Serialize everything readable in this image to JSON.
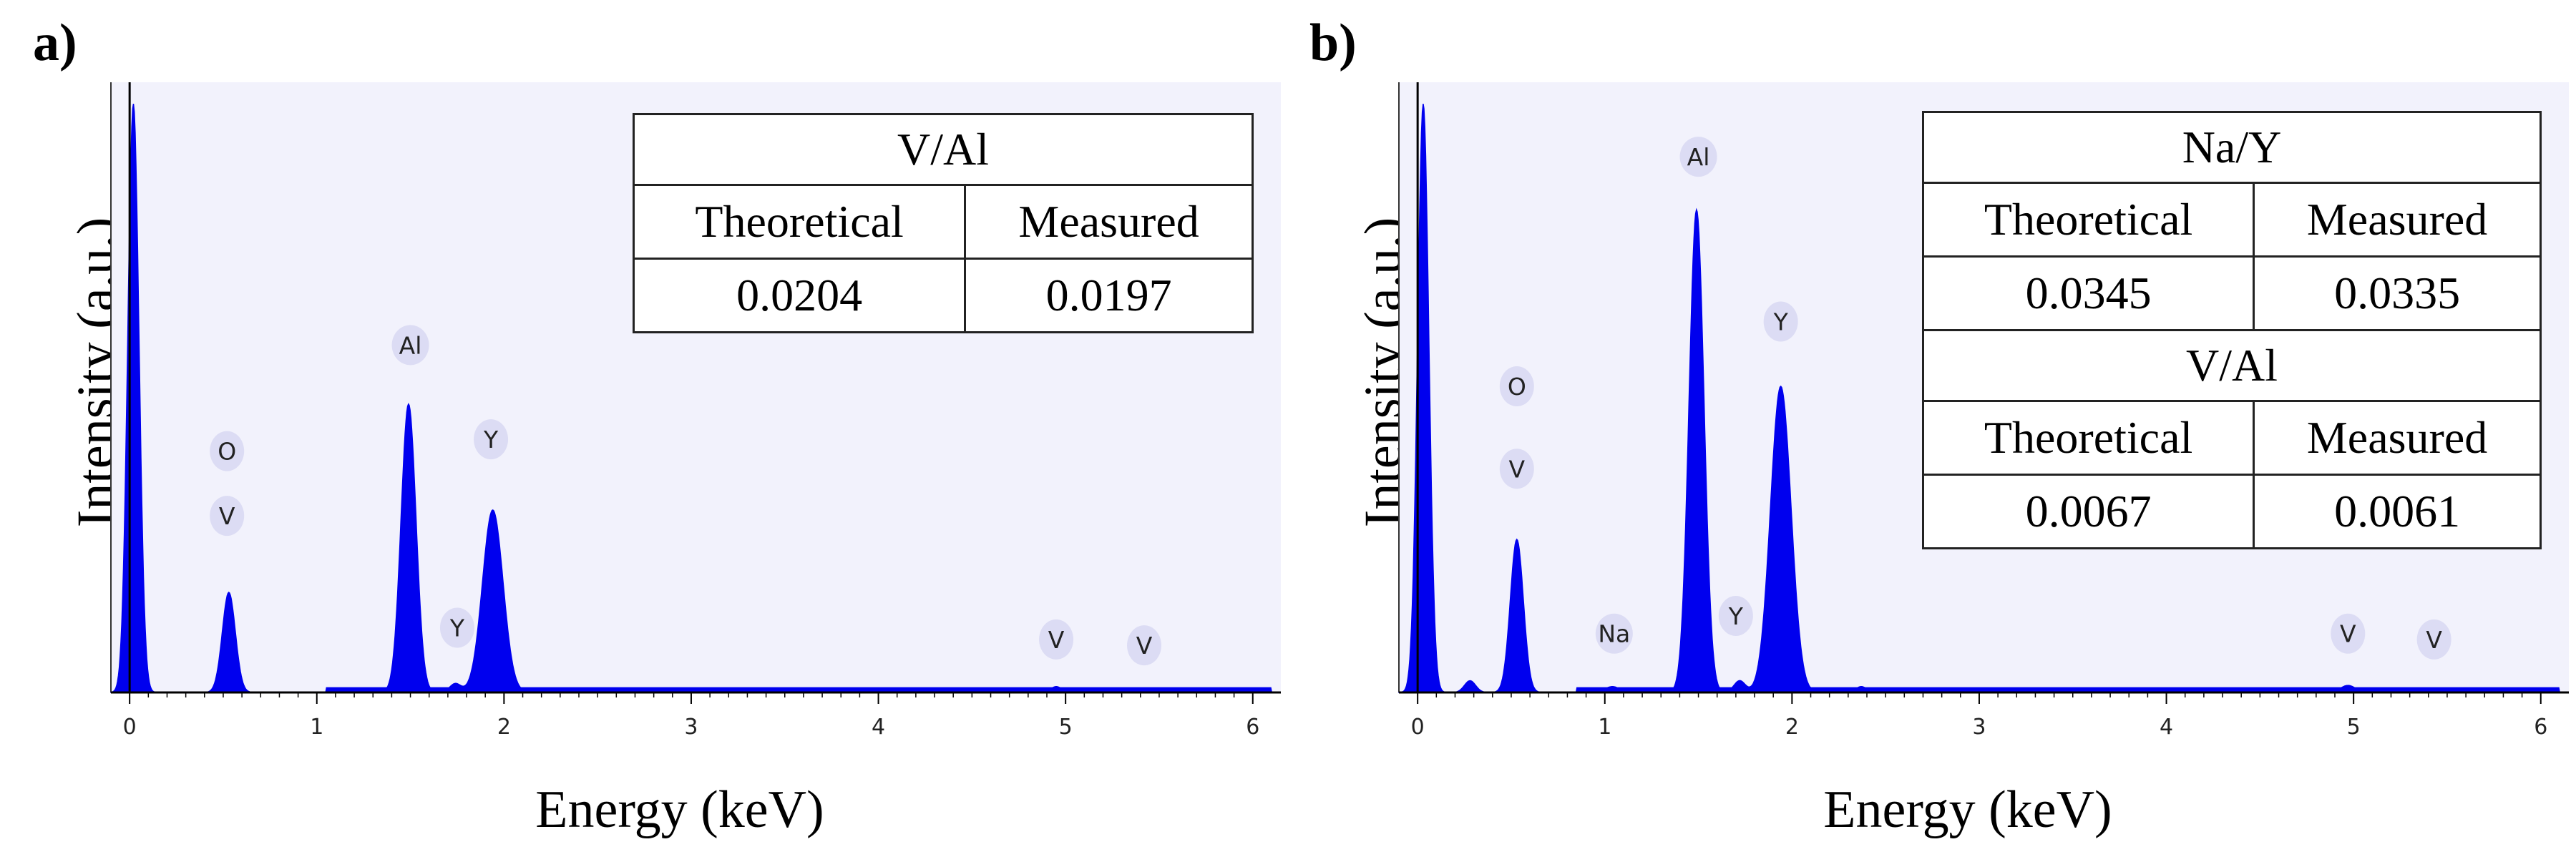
{
  "chart_data": [
    {
      "panel": "a)",
      "type": "area",
      "title": "",
      "xlabel": "Energy (keV)",
      "ylabel": "Intensity (a.u.)",
      "xlim": [
        -0.1,
        6.15
      ],
      "xticks": [
        "0",
        "1",
        "2",
        "3",
        "4",
        "5",
        "6"
      ],
      "grid": false,
      "peaks": [
        {
          "x": 0.02,
          "height": 100,
          "width": 0.03
        },
        {
          "x": 0.53,
          "height": 17,
          "width": 0.035
        },
        {
          "x": 1.49,
          "height": 49,
          "width": 0.04
        },
        {
          "x": 1.74,
          "height": 1.5,
          "width": 0.03
        },
        {
          "x": 1.94,
          "height": 31,
          "width": 0.055
        },
        {
          "x": 4.95,
          "height": 1,
          "width": 0.03
        }
      ],
      "baseline": {
        "from": 1.05,
        "to": 6.1,
        "value": 0.8
      },
      "peak_labels": [
        {
          "text": "O",
          "x": 0.52,
          "y": 41
        },
        {
          "text": "V",
          "x": 0.52,
          "y": 30
        },
        {
          "text": "Al",
          "x": 1.5,
          "y": 59
        },
        {
          "text": "Y",
          "x": 1.75,
          "y": 11
        },
        {
          "text": "Y",
          "x": 1.93,
          "y": 43
        },
        {
          "text": "V",
          "x": 4.95,
          "y": 9
        },
        {
          "text": "V",
          "x": 5.42,
          "y": 8
        }
      ],
      "tables": [
        {
          "title": "V/Al",
          "headers": [
            "Theoretical",
            "Measured"
          ],
          "values": [
            "0.0204",
            "0.0197"
          ]
        }
      ]
    },
    {
      "panel": "b)",
      "type": "area",
      "title": "",
      "xlabel": "Energy (keV)",
      "ylabel": "Intensity (a.u.)",
      "xlim": [
        -0.1,
        6.15
      ],
      "xticks": [
        "0",
        "1",
        "2",
        "3",
        "4",
        "5",
        "6"
      ],
      "grid": false,
      "peaks": [
        {
          "x": 0.03,
          "height": 100,
          "width": 0.03
        },
        {
          "x": 0.28,
          "height": 2,
          "width": 0.03
        },
        {
          "x": 0.53,
          "height": 26,
          "width": 0.035
        },
        {
          "x": 1.04,
          "height": 1,
          "width": 0.04
        },
        {
          "x": 1.49,
          "height": 82,
          "width": 0.04
        },
        {
          "x": 1.72,
          "height": 2,
          "width": 0.03
        },
        {
          "x": 1.94,
          "height": 52,
          "width": 0.055
        },
        {
          "x": 2.37,
          "height": 1,
          "width": 0.03
        },
        {
          "x": 4.97,
          "height": 1.2,
          "width": 0.04
        }
      ],
      "baseline": {
        "from": 0.85,
        "to": 6.1,
        "value": 0.8
      },
      "peak_labels": [
        {
          "text": "O",
          "x": 0.53,
          "y": 52
        },
        {
          "text": "V",
          "x": 0.53,
          "y": 38
        },
        {
          "text": "Na",
          "x": 1.05,
          "y": 10
        },
        {
          "text": "Al",
          "x": 1.5,
          "y": 91
        },
        {
          "text": "Y",
          "x": 1.7,
          "y": 13
        },
        {
          "text": "Y",
          "x": 1.94,
          "y": 63
        },
        {
          "text": "V",
          "x": 4.97,
          "y": 10
        },
        {
          "text": "V",
          "x": 5.43,
          "y": 9
        }
      ],
      "tables": [
        {
          "title": "Na/Y",
          "headers": [
            "Theoretical",
            "Measured"
          ],
          "values": [
            "0.0345",
            "0.0335"
          ]
        },
        {
          "title": "V/Al",
          "headers": [
            "Theoretical",
            "Measured"
          ],
          "values": [
            "0.0067",
            "0.0061"
          ]
        }
      ]
    }
  ],
  "colors": {
    "spectrum": "#0000ee",
    "plot_background": "#f2f2fc",
    "label_bubble": "#dcdcf4",
    "axis": "#333333"
  }
}
